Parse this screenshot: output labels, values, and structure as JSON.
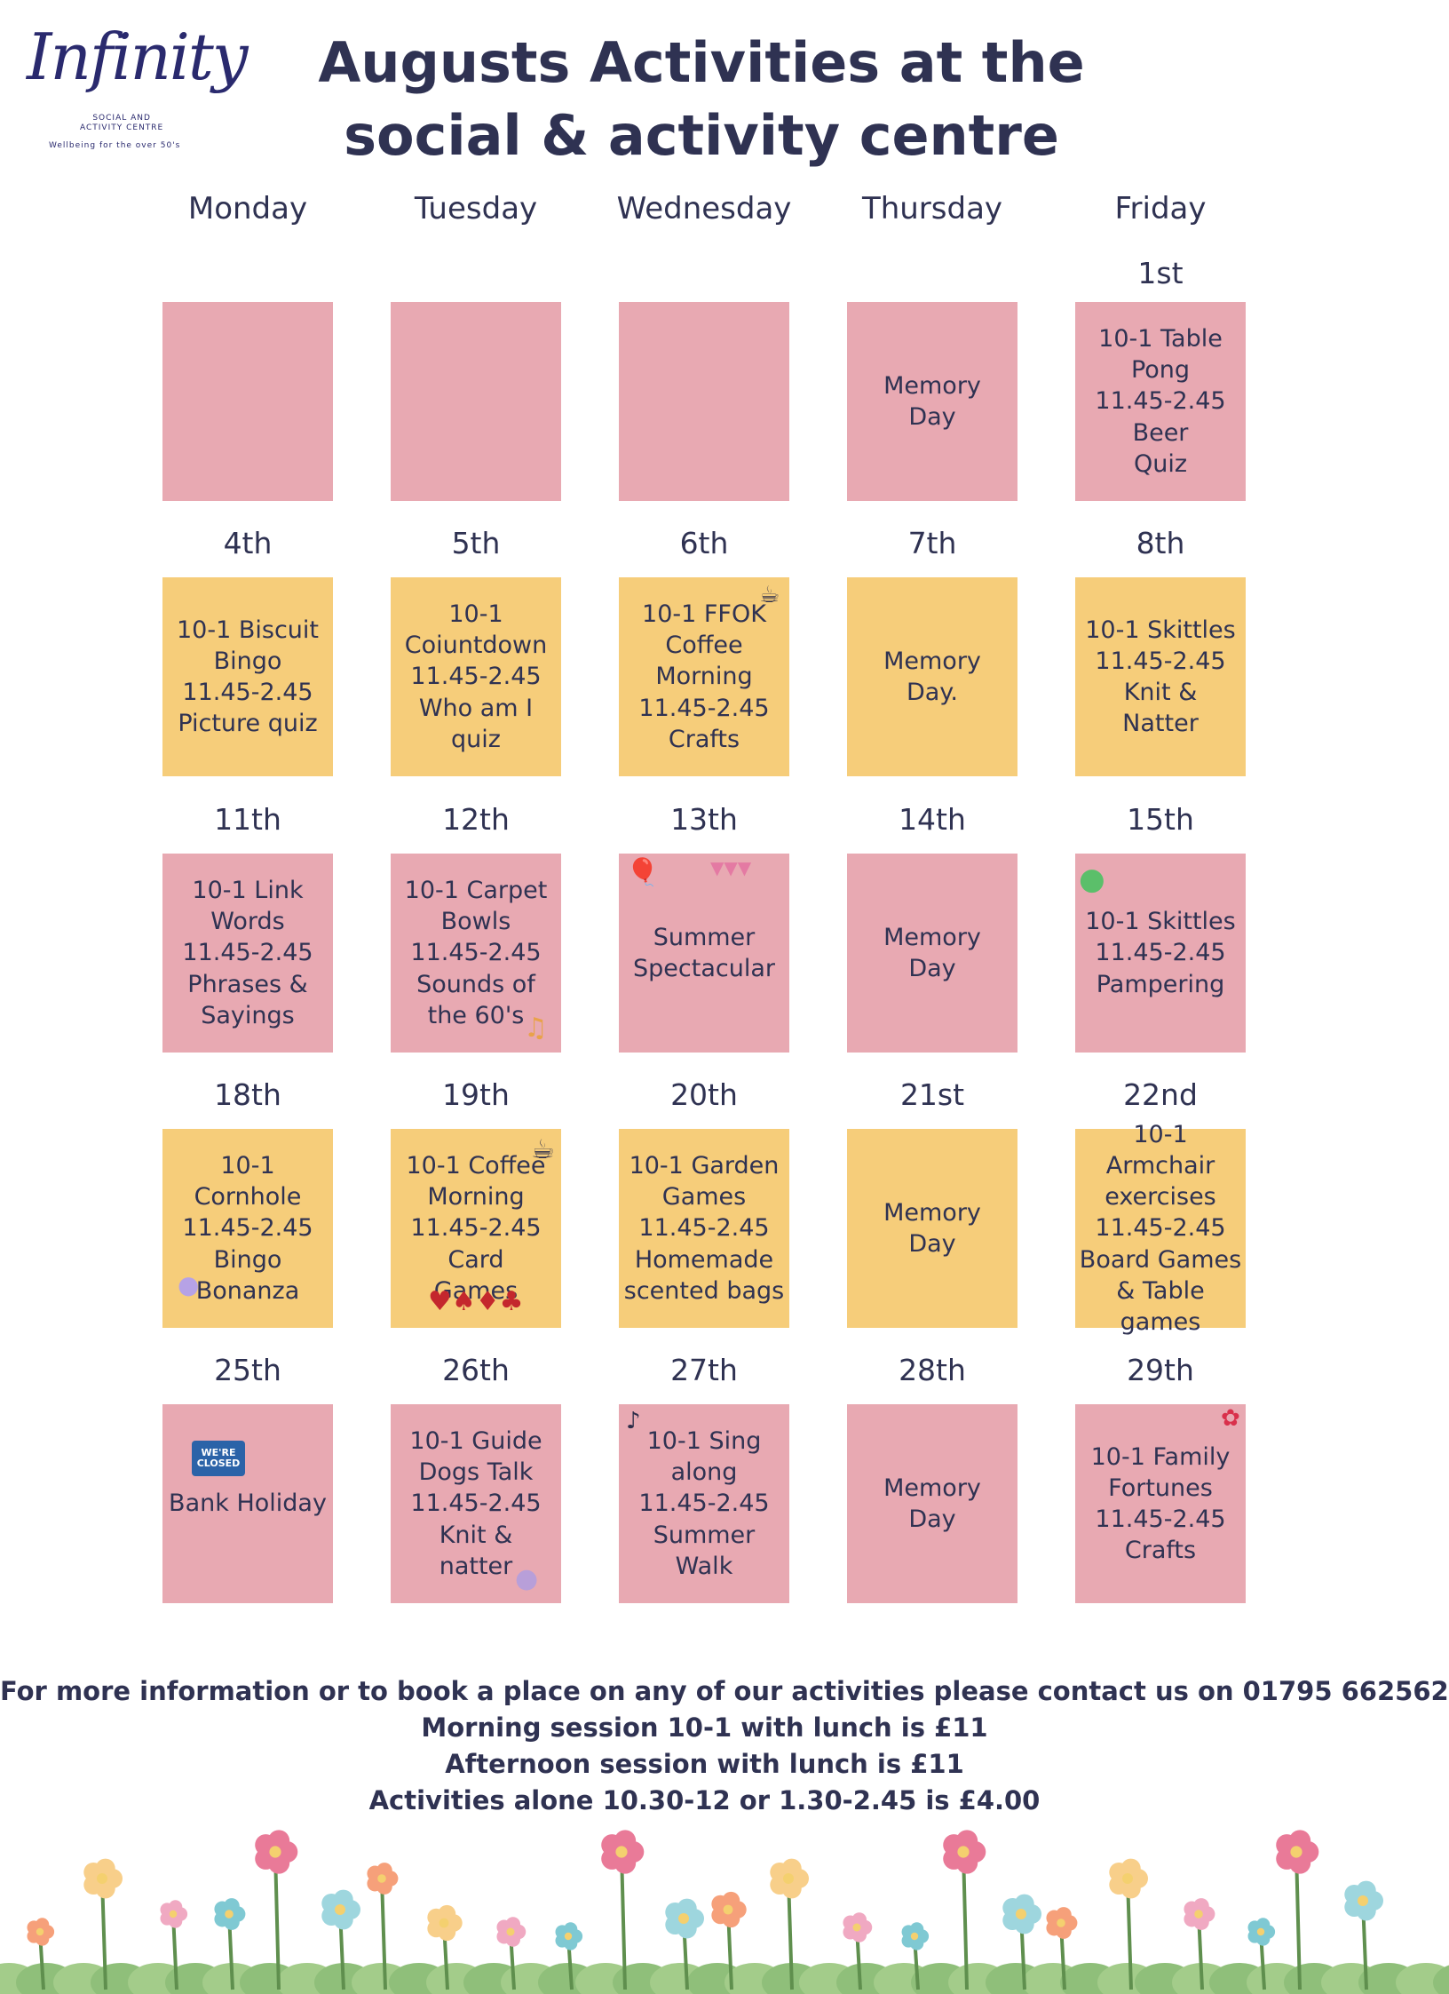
{
  "logo": {
    "name": "Infinity",
    "subtitle_line1": "SOCIAL AND",
    "subtitle_line2": "ACTIVITY CENTRE",
    "tagline": "Wellbeing for the over 50's"
  },
  "title": "Augusts Activities at the social & activity centre",
  "days": [
    "Monday",
    "Tuesday",
    "Wednesday",
    "Thursday",
    "Friday"
  ],
  "weeks": [
    {
      "dates": [
        "",
        "",
        "",
        "",
        "1st"
      ],
      "cells": [
        {
          "color": "pink",
          "text": ""
        },
        {
          "color": "pink",
          "text": ""
        },
        {
          "color": "pink",
          "text": ""
        },
        {
          "color": "pink",
          "text": "Memory\nDay"
        },
        {
          "color": "pink",
          "text": "10-1 Table\nPong\n11.45-2.45 Beer\nQuiz"
        }
      ]
    },
    {
      "dates": [
        "4th",
        "5th",
        "6th",
        "7th",
        "8th"
      ],
      "cells": [
        {
          "color": "yellow",
          "text": "10-1 Biscuit\nBingo\n11.45-2.45\nPicture quiz"
        },
        {
          "color": "yellow",
          "text": "10-1\nCoiuntdown\n11.45-2.45\nWho am I\nquiz"
        },
        {
          "color": "yellow",
          "text": "10-1 FFOK\nCoffee\nMorning\n11.45-2.45\nCrafts"
        },
        {
          "color": "yellow",
          "text": "Memory\nDay."
        },
        {
          "color": "yellow",
          "text": "10-1 Skittles\n11.45-2.45\nKnit &\nNatter"
        }
      ]
    },
    {
      "dates": [
        "11th",
        "12th",
        "13th",
        "14th",
        "15th"
      ],
      "cells": [
        {
          "color": "pink",
          "text": "10-1 Link\nWords\n11.45-2.45\nPhrases &\nSayings"
        },
        {
          "color": "pink",
          "text": "10-1  Carpet\nBowls\n11.45-2.45\nSounds of\nthe 60's"
        },
        {
          "color": "pink",
          "text": "Summer\nSpectacular"
        },
        {
          "color": "pink",
          "text": "Memory\nDay"
        },
        {
          "color": "pink",
          "text": "10-1 Skittles\n11.45-2.45\nPampering"
        }
      ]
    },
    {
      "dates": [
        "18th",
        "19th",
        "20th",
        "21st",
        "22nd"
      ],
      "cells": [
        {
          "color": "yellow",
          "text": "10-1 Cornhole\n11.45-2.45\nBingo Bonanza"
        },
        {
          "color": "yellow",
          "text": "10-1 Coffee\nMorning\n11.45-2.45\nCard\nGames"
        },
        {
          "color": "yellow",
          "text": "10-1  Garden\nGames\n11.45-2.45\nHomemade\nscented bags"
        },
        {
          "color": "yellow",
          "text": "Memory\nDay"
        },
        {
          "color": "yellow",
          "text": "10-1 Armchair\nexercises\n11.45-2.45\nBoard Games\n& Table\ngames"
        }
      ]
    },
    {
      "dates": [
        "25th",
        "26th",
        "27th",
        "28th",
        "29th"
      ],
      "cells": [
        {
          "color": "pink",
          "text": "Bank Holiday"
        },
        {
          "color": "pink",
          "text": "10-1 Guide\nDogs Talk\n11.45-2.45\nKnit &\nnatter"
        },
        {
          "color": "pink",
          "text": "10-1 Sing\nalong\n11.45-2.45\nSummer\nWalk"
        },
        {
          "color": "pink",
          "text": "Memory\nDay"
        },
        {
          "color": "pink",
          "text": "10-1 Family\nFortunes\n11.45-2.45\nCrafts"
        }
      ]
    }
  ],
  "footer": [
    "For more information or to book a place on any of our activities please contact us on 01795 662562",
    "Morning session 10-1 with lunch is £11",
    "Afternoon session with lunch is £11",
    "Activities alone 10.30-12 or 1.30-2.45 is £4.00"
  ],
  "closed_sign": "WE'RE CLOSED",
  "colors": {
    "pink": "#e8a9b2",
    "yellow": "#f6cd7a",
    "text": "#2f3252"
  }
}
